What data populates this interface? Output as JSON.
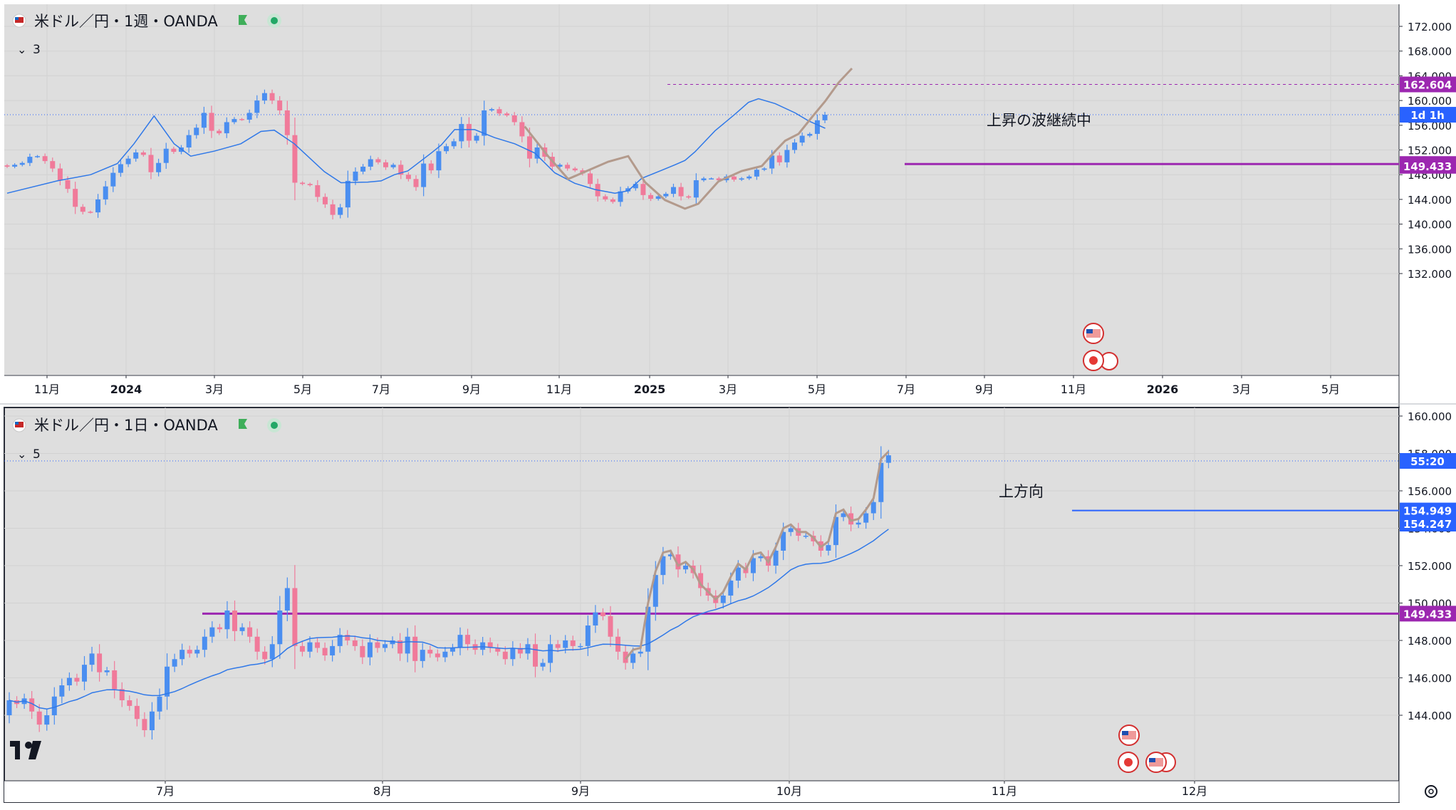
{
  "colors": {
    "up": "#4a8ef0",
    "down": "#f07a9a",
    "ma": "#2f78e8",
    "wave": "#b39a8c",
    "level": "#9c27b0",
    "level_blue": "#2962ff",
    "bg": "#dedede",
    "text": "#131722"
  },
  "chart_data": [
    {
      "type": "candlestick",
      "title": "米ドル／円・1週・OANDA",
      "indicator_count": "3",
      "ylim": [
        128,
        174
      ],
      "y_ticks": [
        "172.000",
        "168.000",
        "164.000",
        "160.000",
        "156.000",
        "152.000",
        "148.000",
        "144.000",
        "140.000",
        "136.000",
        "132.000"
      ],
      "x_ticks": [
        "11月",
        "2024",
        "3月",
        "5月",
        "7月",
        "9月",
        "11月",
        "2025",
        "3月",
        "5月",
        "7月",
        "9月",
        "11月",
        "2026",
        "3月",
        "5月"
      ],
      "price_labels": [
        {
          "text": "162.604",
          "value": 162.604,
          "color": "#9c27b0"
        },
        {
          "text": "1d 1h",
          "value": 157.7,
          "color": "#2962ff"
        },
        {
          "text": "149.727",
          "value": 149.727,
          "color": "#9c27b0"
        },
        {
          "text": "149.433",
          "value": 149.433,
          "color": "#9c27b0"
        }
      ],
      "annotation": "上昇の波継続中",
      "dashed_level": 162.604,
      "solid_level": 149.727,
      "dotted_price_line": 157.7,
      "events": [
        "us-flag-icon",
        "jp-flag-icon",
        "us-flag-icon"
      ],
      "open_start": 149.5,
      "closes": [
        149.3,
        149.6,
        149.9,
        150.9,
        151.0,
        150.2,
        149.0,
        147.1,
        145.7,
        142.8,
        142.0,
        141.9,
        144.0,
        146.1,
        148.3,
        149.7,
        150.6,
        151.6,
        151.2,
        148.4,
        149.9,
        152.2,
        151.7,
        152.4,
        154.4,
        155.6,
        158.0,
        155.1,
        154.7,
        156.5,
        157.0,
        156.9,
        158.0,
        160.0,
        161.2,
        160.0,
        158.4,
        154.4,
        146.7,
        146.5,
        146.3,
        144.4,
        143.2,
        141.5,
        142.7,
        147.0,
        148.5,
        149.3,
        150.5,
        150.0,
        149.2,
        149.6,
        148.0,
        147.3,
        146.0,
        149.8,
        148.7,
        151.8,
        152.6,
        153.4,
        156.2,
        153.5,
        154.3,
        158.4,
        158.6,
        157.9,
        157.6,
        156.5,
        154.2,
        150.6,
        152.4,
        150.9,
        149.3,
        149.6,
        149.0,
        148.7,
        148.2,
        146.5,
        144.5,
        144.0,
        143.6,
        145.3,
        145.8,
        146.5,
        144.7,
        144.1,
        144.5,
        144.9,
        146.0,
        144.5,
        144.3,
        147.1,
        147.4,
        147.4,
        147.1,
        147.7,
        147.2,
        147.4,
        147.7,
        148.8,
        149.0,
        151.1,
        150.0,
        152.0,
        153.2,
        154.3,
        154.6,
        156.8,
        157.7
      ],
      "ma": [
        [
          0,
          145.0
        ],
        [
          15,
          147.0
        ],
        [
          25,
          148.0
        ],
        [
          33,
          149.8
        ],
        [
          38,
          153.0
        ],
        [
          44,
          157.5
        ],
        [
          50,
          153.0
        ],
        [
          55,
          151.0
        ],
        [
          62,
          151.8
        ],
        [
          70,
          153.0
        ],
        [
          76,
          155.0
        ],
        [
          80,
          155.2
        ],
        [
          86,
          153.0
        ],
        [
          95,
          148.5
        ],
        [
          100,
          146.7
        ],
        [
          108,
          146.8
        ],
        [
          112,
          147.0
        ],
        [
          116,
          148.0
        ],
        [
          120,
          148.6
        ],
        [
          127,
          151.5
        ],
        [
          130,
          152.8
        ],
        [
          134,
          155.3
        ],
        [
          140,
          155.3
        ],
        [
          146,
          154.0
        ],
        [
          152,
          153.0
        ],
        [
          158,
          151.5
        ],
        [
          164,
          148.3
        ],
        [
          170,
          146.6
        ],
        [
          176,
          145.6
        ],
        [
          182,
          145.0
        ],
        [
          186,
          145.4
        ],
        [
          190,
          147.4
        ],
        [
          196,
          148.7
        ],
        [
          200,
          149.6
        ],
        [
          203,
          150.3
        ],
        [
          206,
          151.7
        ],
        [
          212,
          155.1
        ],
        [
          218,
          157.8
        ],
        [
          222,
          159.7
        ],
        [
          225,
          160.3
        ],
        [
          230,
          159.5
        ],
        [
          236,
          158.0
        ],
        [
          240,
          156.7
        ],
        [
          245,
          155.5
        ]
      ],
      "wave": [
        [
          155,
          155.8
        ],
        [
          162,
          151.0
        ],
        [
          168,
          147.3
        ],
        [
          180,
          150.1
        ],
        [
          186,
          151.0
        ],
        [
          191,
          146.8
        ],
        [
          197,
          143.9
        ],
        [
          203,
          142.5
        ],
        [
          207,
          143.3
        ],
        [
          213,
          146.9
        ],
        [
          220,
          148.6
        ],
        [
          226,
          149.4
        ],
        [
          230,
          151.8
        ],
        [
          233,
          153.5
        ],
        [
          237,
          154.6
        ],
        [
          241,
          157.3
        ],
        [
          245,
          159.9
        ],
        [
          249,
          162.9
        ],
        [
          253,
          165.2
        ]
      ]
    },
    {
      "type": "candlestick",
      "title": "米ドル／円・1日・OANDA",
      "indicator_count": "5",
      "ylim": [
        143.0,
        160.5
      ],
      "y_ticks": [
        "160.000",
        "158.000",
        "156.000",
        "154.000",
        "152.000",
        "150.000",
        "148.000",
        "146.000",
        "144.000"
      ],
      "x_ticks": [
        "7月",
        "8月",
        "9月",
        "10月",
        "11月",
        "12月"
      ],
      "price_labels": [
        {
          "text": "55:20",
          "value": 157.6,
          "color": "#2962ff"
        },
        {
          "text": "154.949",
          "value": 154.949,
          "color": "#2962ff"
        },
        {
          "text": "154.247",
          "value": 154.247,
          "color": "#2962ff"
        },
        {
          "text": "149.433",
          "value": 149.433,
          "color": "#9c27b0"
        }
      ],
      "annotation": "上方向",
      "solid_level_purple": 149.433,
      "solid_level_blue": 154.949,
      "dotted_price_line": 157.6,
      "events": [
        "us-flag-icon",
        "jp-flag-icon",
        "us-flag-icon"
      ],
      "open_start": 144.0,
      "closes": [
        144.8,
        144.6,
        144.9,
        144.2,
        143.5,
        144.0,
        145.0,
        145.6,
        146.0,
        145.8,
        146.7,
        147.3,
        146.3,
        146.4,
        145.4,
        144.8,
        144.5,
        143.8,
        143.2,
        144.2,
        145.0,
        146.6,
        147.0,
        147.5,
        147.3,
        147.5,
        148.2,
        148.7,
        148.6,
        149.6,
        148.5,
        148.7,
        148.2,
        147.4,
        147.0,
        147.8,
        149.6,
        150.8,
        147.7,
        147.4,
        147.9,
        147.6,
        147.2,
        147.7,
        148.3,
        148.0,
        147.7,
        147.1,
        147.9,
        147.6,
        147.8,
        148.0,
        147.3,
        148.2,
        146.9,
        147.5,
        147.3,
        147.1,
        147.4,
        147.6,
        148.3,
        147.8,
        147.5,
        147.9,
        147.6,
        147.4,
        147.0,
        147.6,
        147.3,
        147.8,
        146.6,
        146.8,
        147.8,
        147.6,
        148.0,
        147.7,
        147.7,
        148.8,
        149.5,
        149.3,
        148.2,
        147.4,
        146.8,
        147.3,
        147.4,
        149.8,
        151.5,
        152.5,
        152.6,
        151.8,
        152.0,
        151.6,
        150.8,
        150.4,
        150.0,
        150.4,
        151.2,
        151.9,
        151.6,
        152.4,
        152.5,
        152.0,
        152.8,
        153.8,
        154.0,
        153.6,
        153.6,
        153.3,
        152.8,
        153.1,
        154.6,
        154.8,
        154.2,
        154.3,
        154.8,
        155.4,
        157.5,
        157.9
      ]
    }
  ]
}
